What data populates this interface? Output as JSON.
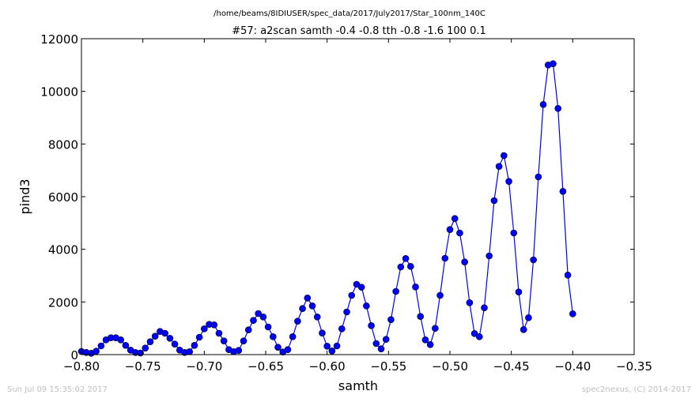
{
  "footer": {
    "left": "Sun Jul 09 15:35:02 2017",
    "right": "spec2nexus, (C) 2014-2017"
  },
  "chart_data": {
    "type": "line",
    "subtitle": "/home/beams/8IDIUSER/spec_data/2017/July2017/Star_100nm_140C",
    "title": "#57: a2scan  samth -0.4 -0.8  tth -0.8 -1.6  100 0.1",
    "xlabel": "samth",
    "ylabel": "pind3",
    "xlim": [
      -0.8,
      -0.35
    ],
    "ylim": [
      0,
      12000
    ],
    "xticks": [
      "−0.80",
      "−0.75",
      "−0.70",
      "−0.65",
      "−0.60",
      "−0.55",
      "−0.50",
      "−0.45",
      "−0.40",
      "−0.35"
    ],
    "xtick_values": [
      -0.8,
      -0.75,
      -0.7,
      -0.65,
      -0.6,
      -0.55,
      -0.5,
      -0.45,
      -0.4,
      -0.35
    ],
    "yticks": [
      "0",
      "2000",
      "4000",
      "6000",
      "8000",
      "10000",
      "12000"
    ],
    "ytick_values": [
      0,
      2000,
      4000,
      6000,
      8000,
      10000,
      12000
    ],
    "grid": false,
    "series": [
      {
        "color": "#0000ff",
        "marker": "circle",
        "x": [
          -0.8,
          -0.796,
          -0.792,
          -0.788,
          -0.784,
          -0.78,
          -0.776,
          -0.772,
          -0.768,
          -0.764,
          -0.76,
          -0.756,
          -0.752,
          -0.748,
          -0.744,
          -0.74,
          -0.736,
          -0.732,
          -0.728,
          -0.724,
          -0.72,
          -0.716,
          -0.712,
          -0.708,
          -0.704,
          -0.7,
          -0.696,
          -0.692,
          -0.688,
          -0.684,
          -0.68,
          -0.676,
          -0.672,
          -0.668,
          -0.664,
          -0.66,
          -0.656,
          -0.652,
          -0.648,
          -0.644,
          -0.64,
          -0.636,
          -0.632,
          -0.628,
          -0.624,
          -0.62,
          -0.616,
          -0.612,
          -0.608,
          -0.604,
          -0.6,
          -0.596,
          -0.592,
          -0.588,
          -0.584,
          -0.58,
          -0.576,
          -0.572,
          -0.568,
          -0.564,
          -0.56,
          -0.556,
          -0.552,
          -0.548,
          -0.544,
          -0.54,
          -0.536,
          -0.532,
          -0.528,
          -0.524,
          -0.52,
          -0.516,
          -0.512,
          -0.508,
          -0.504,
          -0.5,
          -0.496,
          -0.492,
          -0.488,
          -0.484,
          -0.48,
          -0.476,
          -0.472,
          -0.468,
          -0.464,
          -0.46,
          -0.456,
          -0.452,
          -0.448,
          -0.444,
          -0.44,
          -0.436,
          -0.432,
          -0.428,
          -0.424,
          -0.42,
          -0.416,
          -0.412,
          -0.408,
          -0.404,
          -0.4
        ],
        "y": [
          120,
          80,
          50,
          130,
          330,
          560,
          640,
          640,
          560,
          350,
          170,
          80,
          60,
          250,
          490,
          700,
          880,
          810,
          620,
          400,
          170,
          80,
          110,
          350,
          660,
          980,
          1150,
          1130,
          810,
          520,
          190,
          110,
          160,
          520,
          940,
          1300,
          1560,
          1430,
          1050,
          680,
          280,
          100,
          190,
          680,
          1270,
          1750,
          2150,
          1850,
          1430,
          820,
          320,
          140,
          330,
          980,
          1620,
          2250,
          2670,
          2560,
          1850,
          1100,
          420,
          220,
          580,
          1330,
          2400,
          3330,
          3650,
          3350,
          2570,
          1450,
          560,
          380,
          1000,
          2250,
          3660,
          4750,
          5170,
          4620,
          3520,
          1970,
          800,
          680,
          1780,
          3750,
          5850,
          7150,
          7560,
          6580,
          4620,
          2380,
          950,
          1400,
          3600,
          6750,
          9500,
          11000,
          11050,
          9350,
          6200,
          3020,
          1550
        ]
      }
    ]
  }
}
